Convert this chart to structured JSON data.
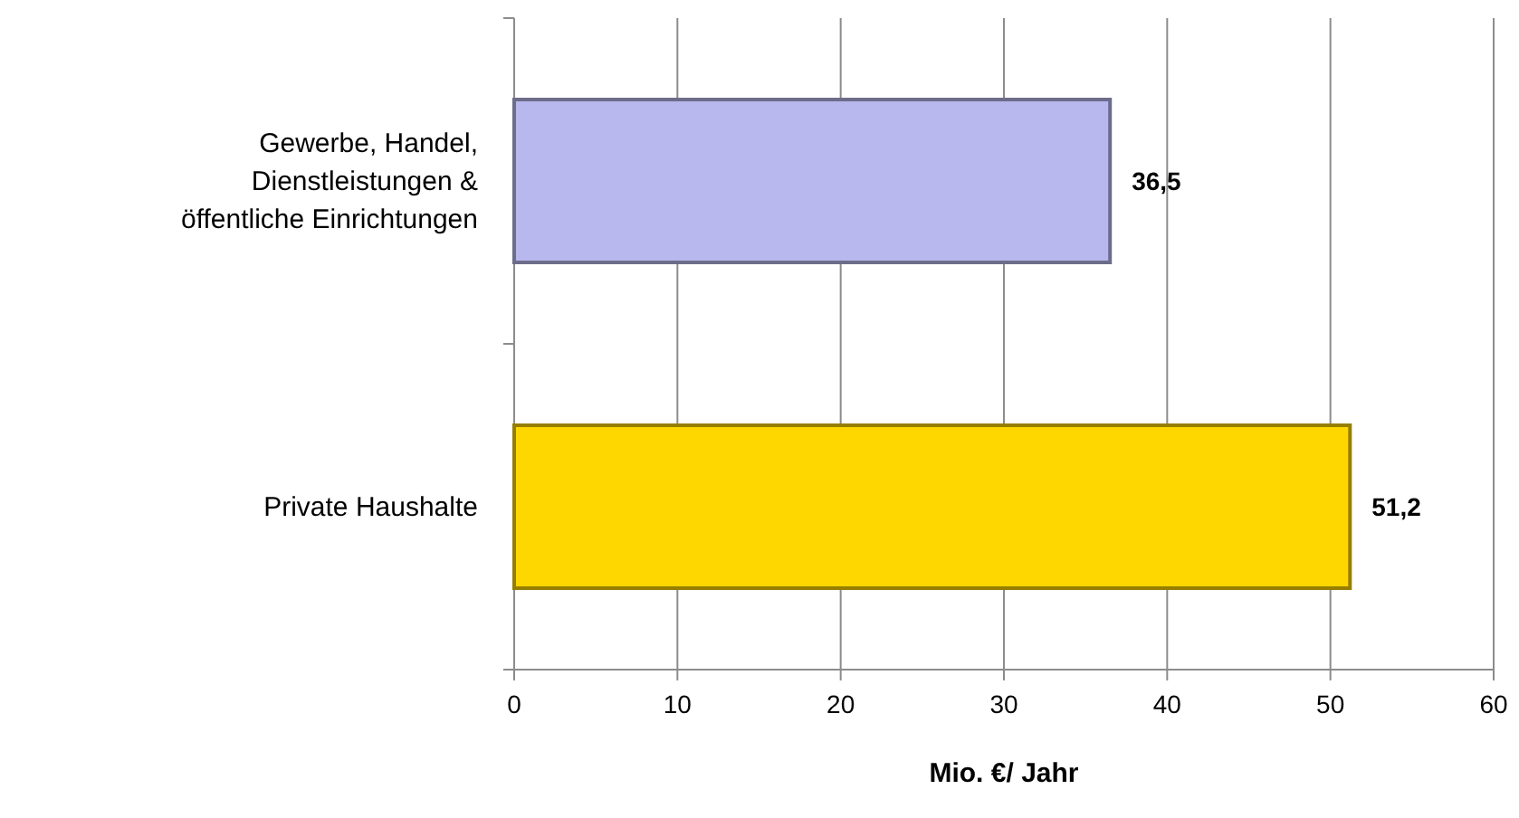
{
  "chart_data": {
    "type": "bar",
    "orientation": "horizontal",
    "xlabel": "Mio. €/ Jahr",
    "categories": [
      "Gewerbe, Handel, Dienstleistungen & öffentliche Einrichtungen",
      "Private Haushalte"
    ],
    "values": [
      36.5,
      51.2
    ],
    "value_labels": [
      "36,5",
      "51,2"
    ],
    "colors": [
      "#b8b8ee",
      "#ffd700"
    ],
    "xlim": [
      0,
      60
    ],
    "xticks": [
      0,
      10,
      20,
      30,
      40,
      50,
      60
    ],
    "grid": "x"
  }
}
